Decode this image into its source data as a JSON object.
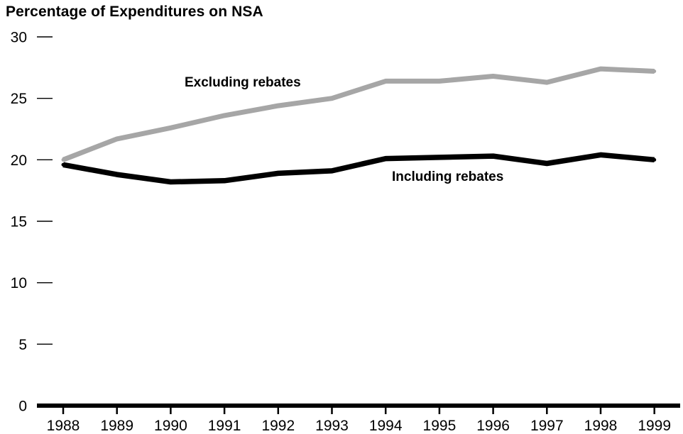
{
  "chart_data": {
    "type": "line",
    "title": "Percentage of Expenditures on NSA",
    "xlabel": "",
    "ylabel": "",
    "x": [
      "1988",
      "1989",
      "1990",
      "1991",
      "1992",
      "1993",
      "1994",
      "1995",
      "1996",
      "1997",
      "1998",
      "1999"
    ],
    "ylim": [
      0,
      30
    ],
    "yticks": [
      0,
      5,
      10,
      15,
      20,
      25,
      30
    ],
    "grid": false,
    "legend": "none",
    "series": [
      {
        "name": "Excluding rebates",
        "color": "#a6a6a6",
        "values": [
          20.0,
          21.7,
          22.6,
          23.6,
          24.4,
          25.0,
          26.4,
          26.4,
          26.8,
          26.3,
          27.4,
          27.2
        ]
      },
      {
        "name": "Including rebates",
        "color": "#000000",
        "values": [
          19.6,
          18.8,
          18.2,
          18.3,
          18.9,
          19.1,
          20.1,
          20.2,
          20.3,
          19.7,
          20.4,
          20.0
        ]
      }
    ]
  }
}
